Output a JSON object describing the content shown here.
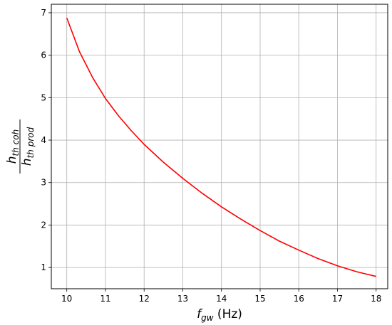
{
  "chart_data": {
    "type": "line",
    "xlabel": {
      "var": "f",
      "sub": "gw",
      "unit": " (Hz)"
    },
    "ylabel": {
      "num_var": "h",
      "num_sub": "th coh",
      "den_var": "h",
      "den_sub": "th prod"
    },
    "xlim": [
      9.6,
      18.3
    ],
    "ylim": [
      0.5,
      7.2
    ],
    "xticks": [
      10,
      11,
      12,
      13,
      14,
      15,
      16,
      17,
      18
    ],
    "yticks": [
      1,
      2,
      3,
      4,
      5,
      6,
      7
    ],
    "grid": true,
    "series": [
      {
        "color": "#ff0000",
        "x": [
          10.0,
          10.33,
          10.67,
          11.0,
          11.33,
          11.67,
          12.0,
          12.5,
          13.0,
          13.5,
          14.0,
          14.5,
          15.0,
          15.5,
          16.0,
          16.5,
          17.0,
          17.5,
          18.0
        ],
        "y": [
          6.88,
          6.08,
          5.47,
          4.98,
          4.58,
          4.22,
          3.9,
          3.48,
          3.1,
          2.75,
          2.43,
          2.14,
          1.87,
          1.62,
          1.41,
          1.21,
          1.04,
          0.9,
          0.79
        ]
      }
    ]
  }
}
